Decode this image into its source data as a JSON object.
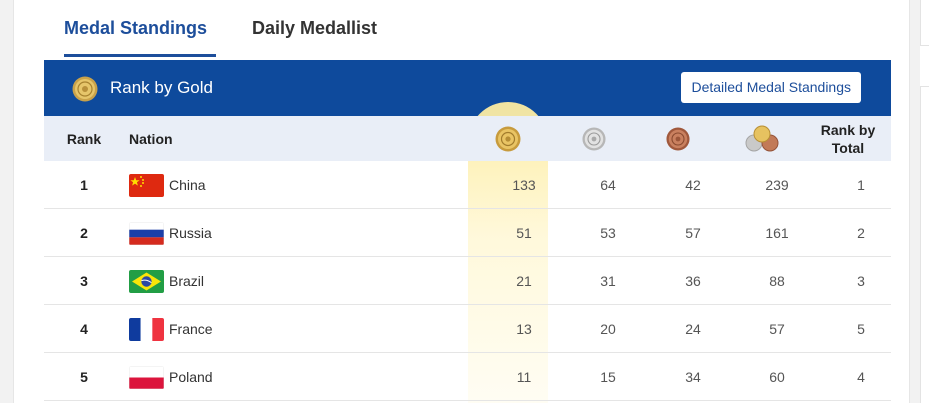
{
  "tabs": [
    {
      "label": "Medal Standings",
      "active": true
    },
    {
      "label": "Daily Medallist",
      "active": false
    }
  ],
  "banner": {
    "title": "Rank by Gold",
    "button_label": "Detailed Medal Standings",
    "icon": "gold-medal-icon"
  },
  "table": {
    "headers": {
      "rank": "Rank",
      "nation": "Nation",
      "gold_icon": "gold-medal-icon",
      "silver_icon": "silver-medal-icon",
      "bronze_icon": "bronze-medal-icon",
      "total_icon": "total-medals-icon",
      "rank_by_total": "Rank by Total"
    },
    "rows": [
      {
        "rank": "1",
        "nation": "China",
        "flag": "china-flag-icon",
        "gold": "133",
        "silver": "64",
        "bronze": "42",
        "total": "239",
        "rank_by_total": "1"
      },
      {
        "rank": "2",
        "nation": "Russia",
        "flag": "russia-flag-icon",
        "gold": "51",
        "silver": "53",
        "bronze": "57",
        "total": "161",
        "rank_by_total": "2"
      },
      {
        "rank": "3",
        "nation": "Brazil",
        "flag": "brazil-flag-icon",
        "gold": "21",
        "silver": "31",
        "bronze": "36",
        "total": "88",
        "rank_by_total": "3"
      },
      {
        "rank": "4",
        "nation": "France",
        "flag": "france-flag-icon",
        "gold": "13",
        "silver": "20",
        "bronze": "24",
        "total": "57",
        "rank_by_total": "5"
      },
      {
        "rank": "5",
        "nation": "Poland",
        "flag": "poland-flag-icon",
        "gold": "11",
        "silver": "15",
        "bronze": "34",
        "total": "60",
        "rank_by_total": "4"
      }
    ]
  },
  "colors": {
    "accent": "#1d4e9b",
    "banner": "#0e4a9c",
    "header_bg": "#e9eef7",
    "gold_highlight": "#fdeca0"
  }
}
